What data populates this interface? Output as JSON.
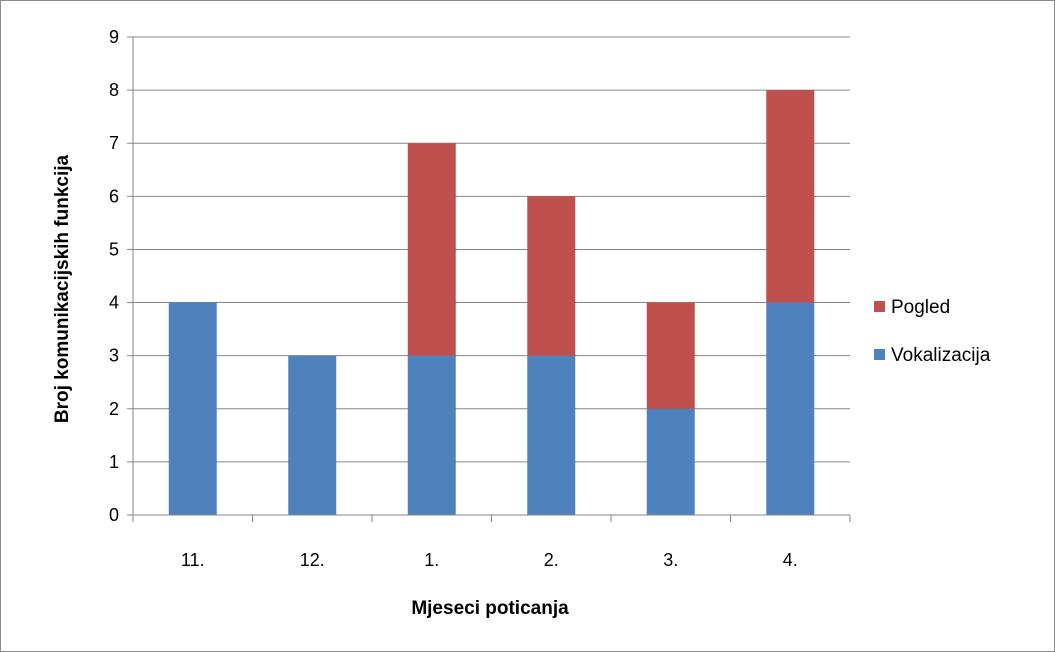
{
  "chart_data": {
    "type": "bar",
    "stacked": true,
    "categories": [
      "11.",
      "12.",
      "1.",
      "2.",
      "3.",
      "4."
    ],
    "series": [
      {
        "name": "Vokalizacija",
        "color": "#4f81bd",
        "values": [
          4,
          3,
          3,
          3,
          2,
          4
        ]
      },
      {
        "name": "Pogled",
        "color": "#c0504d",
        "values": [
          0,
          0,
          4,
          3,
          2,
          4
        ]
      }
    ],
    "title": "",
    "xlabel": "Mjeseci poticanja",
    "ylabel": "Broj komunikacijskih  funkcija",
    "ylim": [
      0,
      9
    ],
    "yticks": [
      "0",
      "1",
      "2",
      "3",
      "4",
      "5",
      "6",
      "7",
      "8",
      "9"
    ],
    "grid": true,
    "legend_position": "right",
    "legend_order": [
      "Pogled",
      "Vokalizacija"
    ]
  }
}
